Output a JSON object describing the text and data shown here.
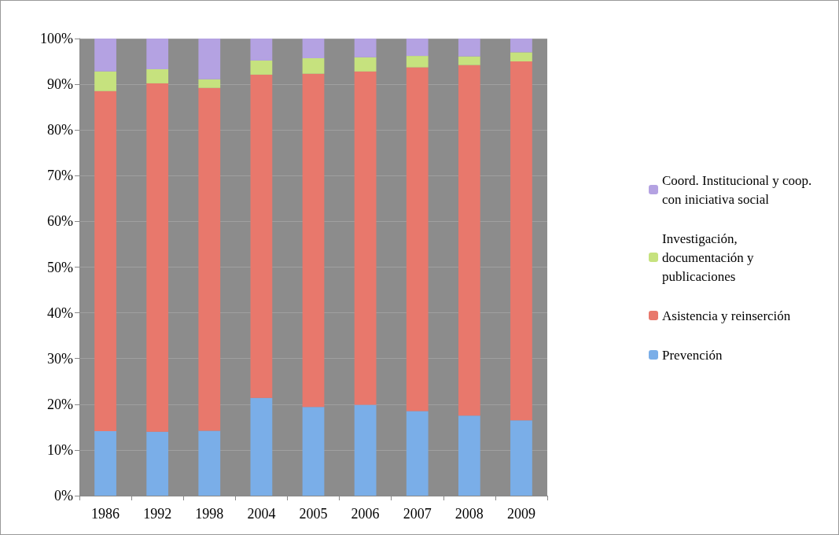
{
  "chart_data": {
    "type": "bar",
    "stacked": true,
    "categories": [
      "1986",
      "1992",
      "1998",
      "2004",
      "2005",
      "2006",
      "2007",
      "2008",
      "2009"
    ],
    "series": [
      {
        "name": "Prevención",
        "color": "#7aaee8",
        "values": [
          14.1,
          14,
          14.2,
          21.4,
          19.4,
          19.9,
          18.5,
          17.5,
          16.5
        ]
      },
      {
        "name": "Asistencia y reinserción",
        "color": "#e8786c",
        "values": [
          74.4,
          76.2,
          75,
          70.7,
          72.9,
          72.9,
          75.2,
          76.7,
          78.5
        ]
      },
      {
        "name": "Investigación, documentación y publicaciones",
        "color": "#c6e27e",
        "values": [
          4.3,
          3.1,
          1.9,
          3.1,
          3.4,
          3.1,
          2.5,
          1.9,
          2
        ]
      },
      {
        "name": "Coord. Institucional y coop. con iniciativa social",
        "color": "#b4a2e2",
        "values": [
          7.2,
          6.7,
          8.9,
          4.8,
          4.3,
          4.1,
          3.8,
          3.9,
          3
        ]
      }
    ],
    "ylim": [
      0,
      100
    ],
    "yticks": [
      {
        "value": 0,
        "label": "0%"
      },
      {
        "value": 10,
        "label": "10%"
      },
      {
        "value": 20,
        "label": "20%"
      },
      {
        "value": 30,
        "label": "30%"
      },
      {
        "value": 40,
        "label": "40%"
      },
      {
        "value": 50,
        "label": "50%"
      },
      {
        "value": 60,
        "label": "60%"
      },
      {
        "value": 70,
        "label": "70%"
      },
      {
        "value": 80,
        "label": "80%"
      },
      {
        "value": 90,
        "label": "90%"
      },
      {
        "value": 100,
        "label": "100%"
      }
    ],
    "grid": "y",
    "legend": "right"
  }
}
